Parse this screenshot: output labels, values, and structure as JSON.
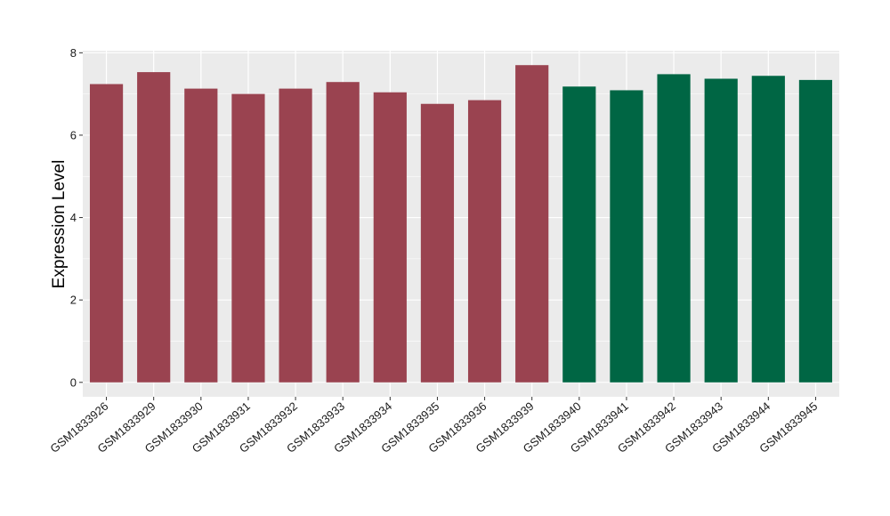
{
  "chart_data": {
    "type": "bar",
    "title": "",
    "xlabel": "",
    "ylabel": "Expression Level",
    "ylim": [
      -0.35,
      8.05
    ],
    "yticks": [
      0,
      2,
      4,
      6,
      8
    ],
    "grid": true,
    "legend": "none",
    "categories": [
      "GSM1833926",
      "GSM1833929",
      "GSM1833930",
      "GSM1833931",
      "GSM1833932",
      "GSM1833933",
      "GSM1833934",
      "GSM1833935",
      "GSM1833936",
      "GSM1833939",
      "GSM1833940",
      "GSM1833941",
      "GSM1833942",
      "GSM1833943",
      "GSM1833944",
      "GSM1833945"
    ],
    "values": [
      7.24,
      7.53,
      7.13,
      7.0,
      7.13,
      7.29,
      7.04,
      6.76,
      6.85,
      7.7,
      7.18,
      7.09,
      7.48,
      7.37,
      7.44,
      7.34
    ],
    "groups": [
      0,
      0,
      0,
      0,
      0,
      0,
      0,
      0,
      0,
      0,
      1,
      1,
      1,
      1,
      1,
      1
    ],
    "group_colors": [
      "#9a4350",
      "#006644"
    ],
    "panel_background": "#ebebeb",
    "grid_color": "#ffffff"
  }
}
